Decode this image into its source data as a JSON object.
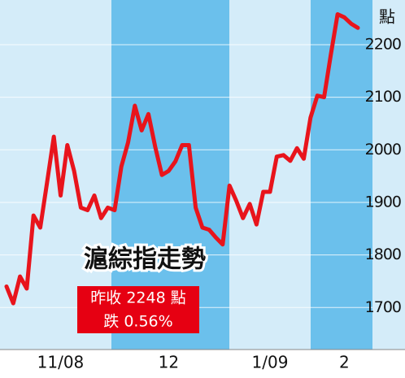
{
  "chart_data": {
    "type": "line",
    "title": "滬綜指走勢",
    "y_label": "點",
    "annotations": [
      "昨收 2248 點",
      "跌 0.56%"
    ],
    "categories": [
      null,
      null,
      null,
      null,
      null,
      null,
      null,
      null,
      "11/08",
      null,
      null,
      null,
      null,
      null,
      null,
      null,
      null,
      null,
      null,
      null,
      null,
      null,
      null,
      null,
      "12",
      null,
      null,
      null,
      null,
      null,
      null,
      null,
      null,
      null,
      null,
      null,
      null,
      null,
      null,
      "1/09",
      null,
      null,
      null,
      null,
      null,
      null,
      null,
      null,
      null,
      null,
      "2",
      null,
      null
    ],
    "series": [
      {
        "color": "#e8141c",
        "values": [
          1740,
          1708,
          1759,
          1736,
          1875,
          1852,
          1937,
          2025,
          1913,
          2009,
          1960,
          1890,
          1885,
          1913,
          1870,
          1890,
          1885,
          1968,
          2014,
          2084,
          2037,
          2068,
          2006,
          1952,
          1960,
          1978,
          2009,
          2009,
          1890,
          1852,
          1848,
          1833,
          1820,
          1932,
          1903,
          1870,
          1897,
          1858,
          1920,
          1920,
          1987,
          1990,
          1979,
          2003,
          1983,
          2061,
          2103,
          2100,
          2181,
          2258,
          2252,
          2240,
          2232
        ]
      }
    ],
    "ylim": [
      1620,
      2285
    ],
    "yticks": [
      1700,
      1800,
      1900,
      2000,
      2100,
      2200
    ],
    "grid": true
  }
}
